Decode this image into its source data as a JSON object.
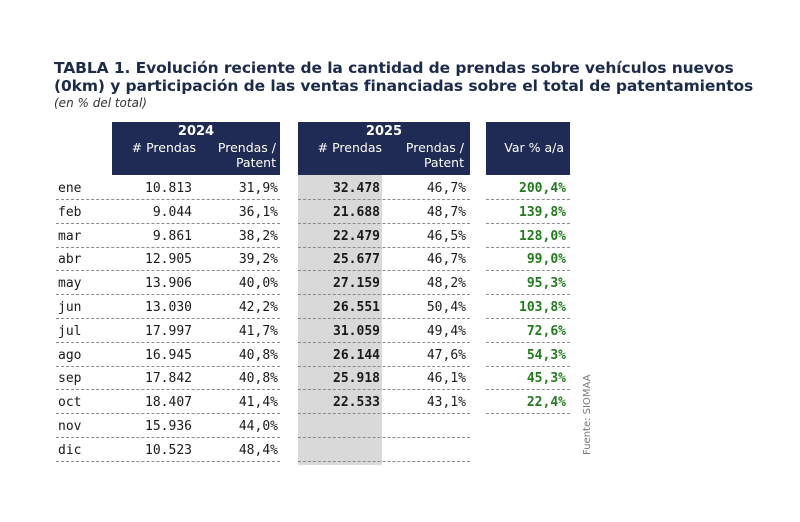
{
  "title": "TABLA 1. Evolución reciente de la cantidad de prendas sobre vehículos nuevos (0km) y participación de las ventas financiadas sobre el total de patentamientos",
  "subtitle": "(en % del total)",
  "headers": {
    "year_2024": "2024",
    "year_2025": "2025",
    "prendas": "# Prendas",
    "prendas_patent_line1": "Prendas /",
    "prendas_patent_line2": "Patent",
    "var": "Var % a/a"
  },
  "rows": [
    {
      "month": "ene",
      "p2024": "10.813",
      "pp2024": "31,9%",
      "p2025": "32.478",
      "pp2025": "46,7%",
      "var": "200,4%"
    },
    {
      "month": "feb",
      "p2024": "9.044",
      "pp2024": "36,1%",
      "p2025": "21.688",
      "pp2025": "48,7%",
      "var": "139,8%"
    },
    {
      "month": "mar",
      "p2024": "9.861",
      "pp2024": "38,2%",
      "p2025": "22.479",
      "pp2025": "46,5%",
      "var": "128,0%"
    },
    {
      "month": "abr",
      "p2024": "12.905",
      "pp2024": "39,2%",
      "p2025": "25.677",
      "pp2025": "46,7%",
      "var": "99,0%"
    },
    {
      "month": "may",
      "p2024": "13.906",
      "pp2024": "40,0%",
      "p2025": "27.159",
      "pp2025": "48,2%",
      "var": "95,3%"
    },
    {
      "month": "jun",
      "p2024": "13.030",
      "pp2024": "42,2%",
      "p2025": "26.551",
      "pp2025": "50,4%",
      "var": "103,8%"
    },
    {
      "month": "jul",
      "p2024": "17.997",
      "pp2024": "41,7%",
      "p2025": "31.059",
      "pp2025": "49,4%",
      "var": "72,6%"
    },
    {
      "month": "ago",
      "p2024": "16.945",
      "pp2024": "40,8%",
      "p2025": "26.144",
      "pp2025": "47,6%",
      "var": "54,3%"
    },
    {
      "month": "sep",
      "p2024": "17.842",
      "pp2024": "40,8%",
      "p2025": "25.918",
      "pp2025": "46,1%",
      "var": "45,3%"
    },
    {
      "month": "oct",
      "p2024": "18.407",
      "pp2024": "41,4%",
      "p2025": "22.533",
      "pp2025": "43,1%",
      "var": "22,4%"
    },
    {
      "month": "nov",
      "p2024": "15.936",
      "pp2024": "44,0%",
      "p2025": "",
      "pp2025": "",
      "var": ""
    },
    {
      "month": "dic",
      "p2024": "10.523",
      "pp2024": "48,4%",
      "p2025": "",
      "pp2025": "",
      "var": ""
    }
  ],
  "source": "Fuente: SIOMAA",
  "colors": {
    "header_bg": "#1f2a55",
    "positive": "#237a1e",
    "shade": "#d9d9d9"
  }
}
